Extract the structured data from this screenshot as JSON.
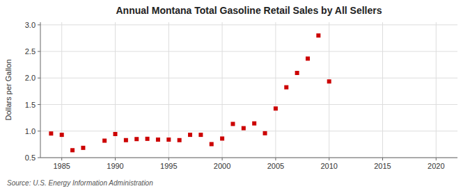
{
  "chart_data": {
    "type": "scatter",
    "title": "Annual Montana Total Gasoline Retail Sales by All Sellers",
    "ylabel": "Dollars per Gallon",
    "source": "Source: U.S. Energy Information Administration",
    "color": "#cc0000",
    "marker": "square",
    "grid": true,
    "xlim": [
      1983,
      2022
    ],
    "ylim": [
      0.5,
      3.05
    ],
    "xticks": [
      1985,
      1990,
      1995,
      2000,
      2005,
      2010,
      2015,
      2020
    ],
    "yticks": [
      0.5,
      {
        "value": 1.0,
        "label": "1.0"
      },
      1.5,
      {
        "value": 2.0,
        "label": "2.0"
      },
      2.5,
      {
        "value": 3.0,
        "label": "3.0"
      }
    ],
    "x": [
      1984,
      1985,
      1986,
      1987,
      1989,
      1990,
      1991,
      1992,
      1993,
      1994,
      1995,
      1996,
      1997,
      1998,
      1999,
      2000,
      2001,
      2002,
      2003,
      2004,
      2005,
      2006,
      2007,
      2008,
      2009,
      2010
    ],
    "values": [
      0.955,
      0.93,
      0.64,
      0.685,
      0.82,
      0.945,
      0.83,
      0.85,
      0.855,
      0.84,
      0.84,
      0.83,
      0.93,
      0.93,
      0.755,
      0.86,
      1.135,
      1.055,
      1.145,
      0.96,
      1.425,
      1.825,
      2.095,
      2.365,
      2.8,
      1.935
    ]
  }
}
